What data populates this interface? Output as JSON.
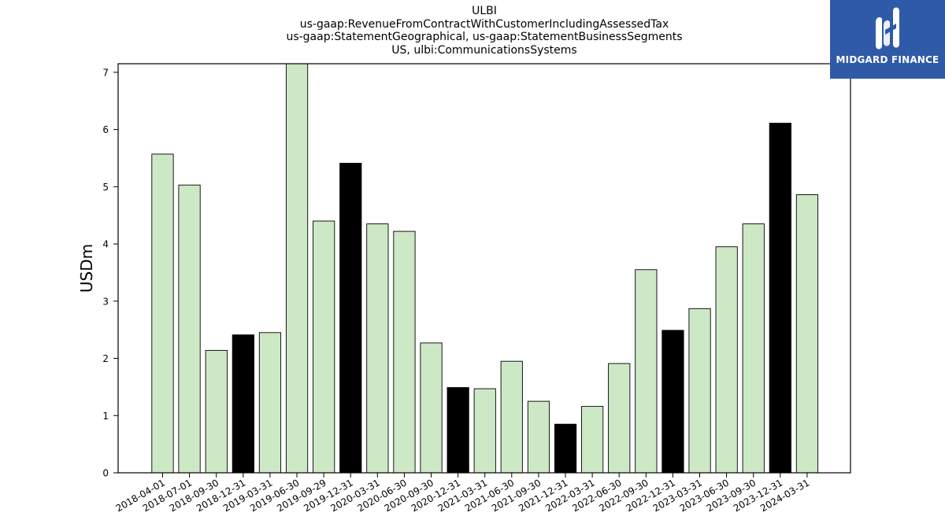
{
  "brand": {
    "name": "MIDGARD FINANCE"
  },
  "chart_data": {
    "type": "bar",
    "title_lines": [
      "ULBI",
      "us-gaap:RevenueFromContractWithCustomerIncludingAssessedTax",
      "us-gaap:StatementGeographical, us-gaap:StatementBusinessSegments",
      "US, ulbi:CommunicationsSystems"
    ],
    "xlabel": "",
    "ylabel": "USDm",
    "ylim": [
      0,
      7.15
    ],
    "yticks": [
      0,
      1,
      2,
      3,
      4,
      5,
      6,
      7
    ],
    "grid": false,
    "categories": [
      "2018-04-01",
      "2018-07-01",
      "2018-09-30",
      "2018-12-31",
      "2019-03-31",
      "2019-06-30",
      "2019-09-29",
      "2019-12-31",
      "2020-03-31",
      "2020-06-30",
      "2020-09-30",
      "2020-12-31",
      "2021-03-31",
      "2021-06-30",
      "2021-09-30",
      "2021-12-31",
      "2022-03-31",
      "2022-06-30",
      "2022-09-30",
      "2022-12-31",
      "2023-03-31",
      "2023-06-30",
      "2023-09-30",
      "2023-12-31",
      "2024-03-31"
    ],
    "values": [
      5.57,
      5.03,
      2.14,
      2.41,
      2.45,
      7.15,
      4.4,
      5.41,
      4.35,
      4.22,
      2.27,
      1.49,
      1.47,
      1.95,
      1.25,
      0.85,
      1.16,
      1.91,
      3.55,
      2.49,
      2.87,
      3.95,
      4.35,
      6.11,
      4.86
    ],
    "highlight": [
      false,
      false,
      false,
      true,
      false,
      false,
      false,
      true,
      false,
      false,
      false,
      true,
      false,
      false,
      false,
      true,
      false,
      false,
      false,
      true,
      false,
      false,
      false,
      true,
      false
    ],
    "colors": {
      "bar": "#cde8c5",
      "highlight_bar": "#000000",
      "edge": "#000000"
    }
  }
}
